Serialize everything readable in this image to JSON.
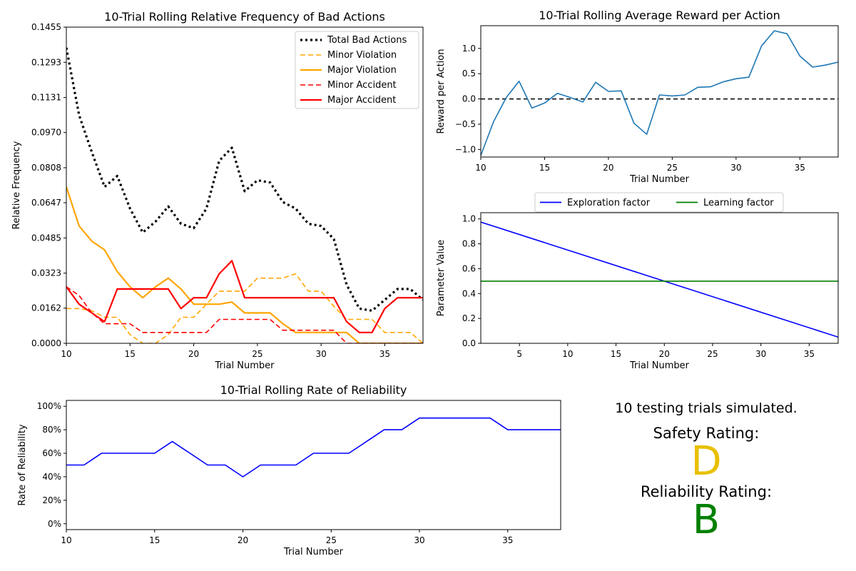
{
  "palette": {
    "black": "#000000",
    "orange": "#ffa500",
    "red": "#ff0000",
    "steel_blue": "#1f77b4",
    "blue": "#0000ff",
    "green": "#008000",
    "safety_grade": "#e8c000",
    "reliability_grade": "#008000"
  },
  "chart_data": [
    {
      "type": "line",
      "title": "10-Trial Rolling Relative Frequency of Bad Actions",
      "xlabel": "Trial Number",
      "ylabel": "Relative Frequency",
      "xlim": [
        10,
        38
      ],
      "ylim": [
        0,
        0.1455
      ],
      "xticks": [
        10,
        15,
        20,
        25,
        30,
        35
      ],
      "yticks": [
        0.0,
        0.0162,
        0.0323,
        0.0485,
        0.0647,
        0.0808,
        0.097,
        0.1131,
        0.1293,
        0.1455
      ],
      "ytick_labels": [
        "0.0000",
        "0.0162",
        "0.0323",
        "0.0485",
        "0.0647",
        "0.0808",
        "0.0970",
        "0.1131",
        "0.1293",
        "0.1455"
      ],
      "legend": "top-right",
      "x": [
        10,
        11,
        12,
        13,
        14,
        15,
        16,
        17,
        18,
        19,
        20,
        21,
        22,
        23,
        24,
        25,
        26,
        27,
        28,
        29,
        30,
        31,
        32,
        33,
        34,
        35,
        36,
        37,
        38
      ],
      "series": [
        {
          "name": "Total Bad Actions",
          "color": "black",
          "style": "dotted",
          "values": [
            0.136,
            0.105,
            0.088,
            0.072,
            0.077,
            0.062,
            0.051,
            0.056,
            0.063,
            0.055,
            0.053,
            0.062,
            0.084,
            0.09,
            0.07,
            0.075,
            0.074,
            0.065,
            0.062,
            0.055,
            0.054,
            0.048,
            0.027,
            0.016,
            0.015,
            0.02,
            0.025,
            0.025,
            0.02
          ]
        },
        {
          "name": "Minor Violation",
          "color": "orange",
          "style": "dashed",
          "values": [
            0.016,
            0.016,
            0.015,
            0.012,
            0.012,
            0.004,
            0.0,
            0.0,
            0.004,
            0.012,
            0.012,
            0.018,
            0.024,
            0.024,
            0.024,
            0.03,
            0.03,
            0.03,
            0.032,
            0.024,
            0.024,
            0.017,
            0.011,
            0.011,
            0.011,
            0.005,
            0.005,
            0.005,
            0.0
          ]
        },
        {
          "name": "Major Violation",
          "color": "orange",
          "style": "solid",
          "values": [
            0.072,
            0.054,
            0.047,
            0.043,
            0.033,
            0.026,
            0.021,
            0.026,
            0.03,
            0.025,
            0.018,
            0.018,
            0.018,
            0.019,
            0.014,
            0.014,
            0.014,
            0.009,
            0.005,
            0.005,
            0.005,
            0.005,
            0.005,
            0.0,
            0.0,
            0.0,
            0.0,
            0.0,
            0.0
          ]
        },
        {
          "name": "Minor Accident",
          "color": "red",
          "style": "dashed",
          "values": [
            0.026,
            0.022,
            0.014,
            0.009,
            0.009,
            0.009,
            0.005,
            0.005,
            0.005,
            0.005,
            0.005,
            0.005,
            0.011,
            0.011,
            0.011,
            0.011,
            0.011,
            0.006,
            0.006,
            0.006,
            0.006,
            0.006,
            0.0,
            0.0,
            0.0,
            0.0,
            0.0,
            0.0,
            0.0
          ]
        },
        {
          "name": "Major Accident",
          "color": "red",
          "style": "solid",
          "values": [
            0.026,
            0.018,
            0.014,
            0.01,
            0.025,
            0.025,
            0.025,
            0.025,
            0.025,
            0.016,
            0.021,
            0.021,
            0.032,
            0.038,
            0.021,
            0.021,
            0.021,
            0.021,
            0.021,
            0.021,
            0.021,
            0.021,
            0.01,
            0.005,
            0.005,
            0.016,
            0.021,
            0.021,
            0.021
          ]
        }
      ]
    },
    {
      "type": "line",
      "title": "10-Trial Rolling Average Reward per Action",
      "xlabel": "Trial Number",
      "ylabel": "Reward per Action",
      "xlim": [
        10,
        38
      ],
      "ylim": [
        -1.15,
        1.45
      ],
      "xticks": [
        10,
        15,
        20,
        25,
        30,
        35
      ],
      "yticks": [
        -1.0,
        -0.5,
        0.0,
        0.5,
        1.0
      ],
      "ytick_labels": [
        "−1.0",
        "−0.5",
        "0.0",
        "0.5",
        "1.0"
      ],
      "reference_line": {
        "y": 0,
        "color": "black",
        "style": "dashed"
      },
      "x": [
        10,
        11,
        12,
        13,
        14,
        15,
        16,
        17,
        18,
        19,
        20,
        21,
        22,
        23,
        24,
        25,
        26,
        27,
        28,
        29,
        30,
        31,
        32,
        33,
        34,
        35,
        36,
        37,
        38
      ],
      "series": [
        {
          "color": "steel_blue",
          "style": "solid",
          "values": [
            -1.12,
            -0.45,
            0.03,
            0.35,
            -0.18,
            -0.08,
            0.11,
            0.03,
            -0.06,
            0.33,
            0.15,
            0.16,
            -0.48,
            -0.7,
            0.08,
            0.06,
            0.08,
            0.23,
            0.24,
            0.34,
            0.4,
            0.43,
            1.05,
            1.35,
            1.29,
            0.85,
            0.63,
            0.67,
            0.73
          ]
        }
      ]
    },
    {
      "type": "line",
      "xlabel": "Trial Number",
      "ylabel": "Parameter Value",
      "xlim": [
        1,
        38
      ],
      "ylim": [
        0,
        1.05
      ],
      "xticks": [
        5,
        10,
        15,
        20,
        25,
        30,
        35
      ],
      "yticks": [
        0.0,
        0.2,
        0.4,
        0.6,
        0.8,
        1.0
      ],
      "ytick_labels": [
        "0.0",
        "0.2",
        "0.4",
        "0.6",
        "0.8",
        "1.0"
      ],
      "legend": "above, horizontal",
      "series": [
        {
          "name": "Exploration factor",
          "color": "blue",
          "style": "solid",
          "x": [
            1,
            38
          ],
          "values": [
            0.975,
            0.05
          ]
        },
        {
          "name": "Learning factor",
          "color": "green",
          "style": "solid",
          "x": [
            1,
            38
          ],
          "values": [
            0.5,
            0.5
          ]
        }
      ]
    },
    {
      "type": "line",
      "title": "10-Trial Rolling Rate of Reliability",
      "xlabel": "Trial Number",
      "ylabel": "Rate of Reliability",
      "xlim": [
        10,
        38
      ],
      "ylim": [
        -5,
        105
      ],
      "xticks": [
        10,
        15,
        20,
        25,
        30,
        35
      ],
      "yticks": [
        0,
        20,
        40,
        60,
        80,
        100
      ],
      "ytick_labels": [
        "0%",
        "20%",
        "40%",
        "60%",
        "80%",
        "100%"
      ],
      "x": [
        10,
        11,
        12,
        13,
        14,
        15,
        16,
        17,
        18,
        19,
        20,
        21,
        22,
        23,
        24,
        25,
        26,
        27,
        28,
        29,
        30,
        31,
        32,
        33,
        34,
        35,
        36,
        37,
        38
      ],
      "series": [
        {
          "color": "blue",
          "style": "solid",
          "values": [
            50,
            50,
            60,
            60,
            60,
            60,
            70,
            60,
            50,
            50,
            40,
            50,
            50,
            50,
            60,
            60,
            60,
            70,
            80,
            80,
            90,
            90,
            90,
            90,
            90,
            80,
            80,
            80,
            80
          ]
        }
      ]
    }
  ],
  "ratings": {
    "summary": "10 testing trials simulated.",
    "safety_label": "Safety Rating:",
    "safety_grade": "D",
    "reliability_label": "Reliability Rating:",
    "reliability_grade": "B"
  }
}
